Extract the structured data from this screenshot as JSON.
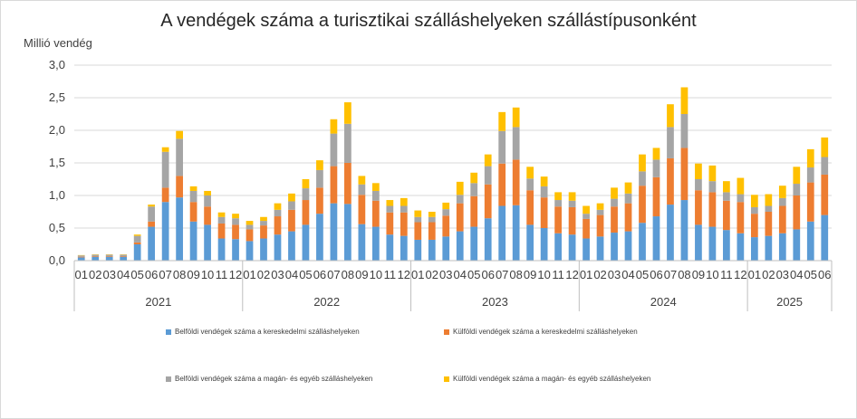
{
  "chart_data": {
    "type": "bar",
    "stacked": true,
    "title": "A vendégek száma a turisztikai szálláshelyeken szállástípusonként",
    "ylabel": "Millió vendég",
    "xlabel": "",
    "ylim": [
      0,
      3.0
    ],
    "yticks": [
      "0,0",
      "0,5",
      "1,0",
      "1,5",
      "2,0",
      "2,5",
      "3,0"
    ],
    "grid": true,
    "legend_position": "bottom",
    "years": [
      {
        "label": "2021",
        "months": [
          "01",
          "02",
          "03",
          "04",
          "05",
          "06",
          "07",
          "08",
          "09",
          "10",
          "11",
          "12"
        ]
      },
      {
        "label": "2022",
        "months": [
          "01",
          "02",
          "03",
          "04",
          "05",
          "06",
          "07",
          "08",
          "09",
          "10",
          "11",
          "12"
        ]
      },
      {
        "label": "2023",
        "months": [
          "01",
          "02",
          "03",
          "04",
          "05",
          "06",
          "07",
          "08",
          "09",
          "10",
          "11",
          "12"
        ]
      },
      {
        "label": "2024",
        "months": [
          "01",
          "02",
          "03",
          "04",
          "05",
          "06",
          "07",
          "08",
          "09",
          "10",
          "11",
          "12"
        ]
      },
      {
        "label": "2025",
        "months": [
          "01",
          "02",
          "03",
          "04",
          "05",
          "06"
        ]
      }
    ],
    "series": [
      {
        "name": "Belföldi vendégek száma a kereskedelmi szálláshelyeken",
        "color": "#5b9bd5",
        "values": [
          0.05,
          0.06,
          0.06,
          0.06,
          0.25,
          0.52,
          0.9,
          0.97,
          0.6,
          0.55,
          0.34,
          0.33,
          0.3,
          0.34,
          0.4,
          0.45,
          0.55,
          0.72,
          0.88,
          0.87,
          0.56,
          0.52,
          0.4,
          0.38,
          0.32,
          0.32,
          0.37,
          0.45,
          0.52,
          0.65,
          0.84,
          0.85,
          0.55,
          0.5,
          0.42,
          0.4,
          0.34,
          0.37,
          0.43,
          0.45,
          0.58,
          0.68,
          0.86,
          0.93,
          0.55,
          0.52,
          0.47,
          0.42,
          0.36,
          0.38,
          0.42,
          0.48,
          0.6,
          0.7
        ]
      },
      {
        "name": "Külföldi vendégek száma a kereskedelmi szálláshelyeken",
        "color": "#ed7d31",
        "values": [
          0.01,
          0.01,
          0.01,
          0.01,
          0.03,
          0.08,
          0.22,
          0.33,
          0.3,
          0.28,
          0.23,
          0.22,
          0.18,
          0.2,
          0.28,
          0.33,
          0.38,
          0.4,
          0.57,
          0.63,
          0.45,
          0.4,
          0.34,
          0.36,
          0.27,
          0.27,
          0.32,
          0.43,
          0.47,
          0.52,
          0.65,
          0.7,
          0.53,
          0.47,
          0.41,
          0.42,
          0.3,
          0.33,
          0.4,
          0.43,
          0.57,
          0.6,
          0.71,
          0.8,
          0.53,
          0.53,
          0.45,
          0.48,
          0.36,
          0.37,
          0.42,
          0.52,
          0.6,
          0.62
        ]
      },
      {
        "name": "Belföldi vendégek száma a magán- és egyéb szálláshelyeken",
        "color": "#a5a5a5",
        "values": [
          0.02,
          0.02,
          0.02,
          0.02,
          0.1,
          0.23,
          0.55,
          0.57,
          0.17,
          0.17,
          0.1,
          0.1,
          0.07,
          0.07,
          0.1,
          0.13,
          0.18,
          0.27,
          0.5,
          0.6,
          0.16,
          0.15,
          0.1,
          0.1,
          0.08,
          0.08,
          0.1,
          0.13,
          0.2,
          0.28,
          0.5,
          0.5,
          0.18,
          0.17,
          0.1,
          0.1,
          0.08,
          0.08,
          0.12,
          0.15,
          0.22,
          0.27,
          0.48,
          0.52,
          0.17,
          0.17,
          0.13,
          0.12,
          0.1,
          0.09,
          0.12,
          0.18,
          0.23,
          0.27
        ]
      },
      {
        "name": "Külföldi vendégek száma a magán- és egyéb szálláshelyeken",
        "color": "#ffc000",
        "values": [
          0.005,
          0.005,
          0.005,
          0.005,
          0.02,
          0.03,
          0.07,
          0.12,
          0.07,
          0.07,
          0.07,
          0.07,
          0.06,
          0.06,
          0.1,
          0.12,
          0.14,
          0.15,
          0.22,
          0.33,
          0.13,
          0.12,
          0.09,
          0.12,
          0.1,
          0.08,
          0.1,
          0.2,
          0.16,
          0.18,
          0.29,
          0.3,
          0.18,
          0.15,
          0.12,
          0.13,
          0.12,
          0.1,
          0.17,
          0.17,
          0.26,
          0.18,
          0.35,
          0.41,
          0.24,
          0.24,
          0.17,
          0.25,
          0.19,
          0.18,
          0.19,
          0.26,
          0.28,
          0.3
        ]
      }
    ]
  }
}
